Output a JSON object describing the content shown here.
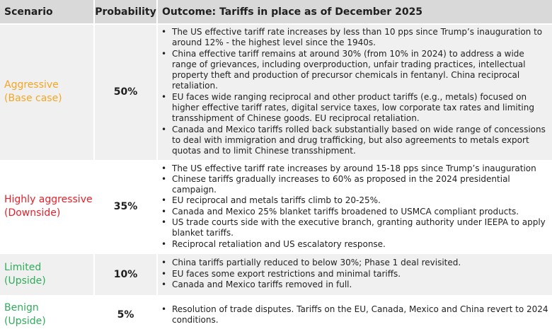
{
  "header": {
    "scenario": "Scenario",
    "probability": "Probability",
    "outcome": "Outcome: Tariffs in place as of December 2025"
  },
  "rows": [
    {
      "name": "Aggressive",
      "case": "(Base case)",
      "color": "#f5a623",
      "probability": "50%",
      "bullets": [
        "The US effective tariff rate increases by less than 10 pps since Trump’s inauguration to around 12% - the highest level since the 1940s.",
        "China effective tariff remains at around 30% (from 10% in 2024) to address a wide range of grievances, including overproduction, unfair trading practices, intellectual property theft and production of precursor chemicals in fentanyl. China reciprocal retaliation.",
        "EU faces wide ranging reciprocal and other product tariffs (e.g., metals) focused on higher effective tariff rates, digital service taxes, low corporate tax rates and limiting transshipment of Chinese goods. EU reciprocal retaliation.",
        "Canada and Mexico tariffs rolled back substantially based on wide range of concessions to deal with immigration and drug trafficking, but also agreements to metals export quotas and to limit Chinese transshipment."
      ]
    },
    {
      "name": "Highly aggressive",
      "case": "(Downside)",
      "color": "#e8202a",
      "probability": "35%",
      "bullets": [
        "The US effective tariff rate increases by around 15-18 pps since Trump’s inauguration",
        "Chinese tariffs gradually increases to 60% as proposed in the 2024 presidential campaign.",
        "EU reciprocal and metals tariffs climb to 20-25%.",
        "Canada and Mexico 25% blanket tariffs broadened to USMCA compliant products.",
        "US trade courts side with the executive branch, granting authority under IEEPA to apply blanket tariffs.",
        "Reciprocal retaliation and US escalatory response."
      ]
    },
    {
      "name": "Limited",
      "case": "(Upside)",
      "color": "#2fad5a",
      "probability": "10%",
      "bullets": [
        "China tariffs partially reduced to below 30%; Phase 1 deal revisited.",
        "EU faces some export restrictions and minimal tariffs.",
        "Canada and Mexico tariffs removed in full."
      ]
    },
    {
      "name": "Benign",
      "case": "(Upside)",
      "color": "#2fad5a",
      "probability": "5%",
      "bullets": [
        "Resolution of trade disputes. Tariffs on the EU, Canada, Mexico and China revert to 2024 conditions."
      ]
    }
  ]
}
